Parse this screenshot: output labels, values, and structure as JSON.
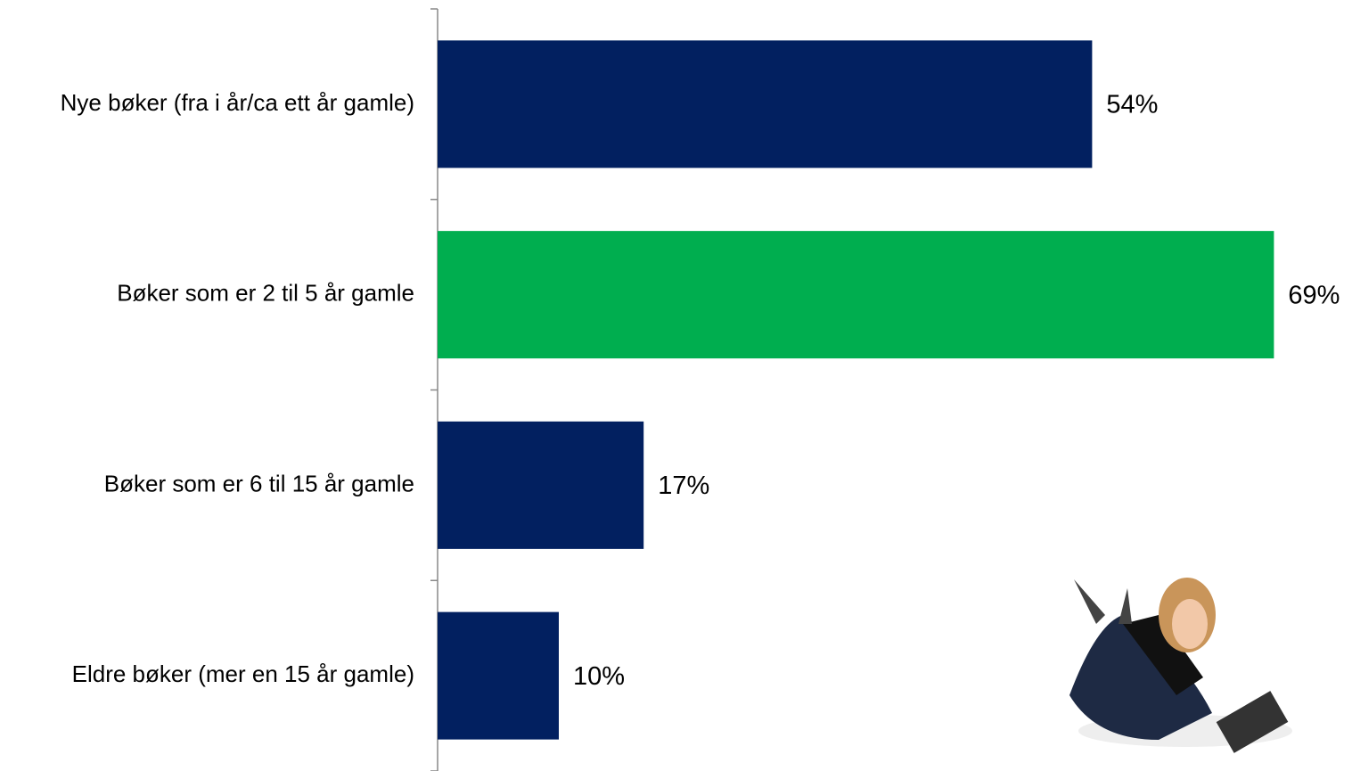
{
  "chart_data": {
    "type": "bar",
    "orientation": "horizontal",
    "categories": [
      "Nye bøker (fra i år/ca ett år gamle)",
      "Bøker som er 2 til 5 år gamle",
      "Bøker som er 6 til 15 år gamle",
      "Eldre bøker (mer en 15 år gamle)"
    ],
    "values": [
      54,
      69,
      17,
      10
    ],
    "value_labels": [
      "54%",
      "69%",
      "17%",
      "10%"
    ],
    "colors": [
      "#022060",
      "#00ae4f",
      "#022060",
      "#022060"
    ]
  }
}
